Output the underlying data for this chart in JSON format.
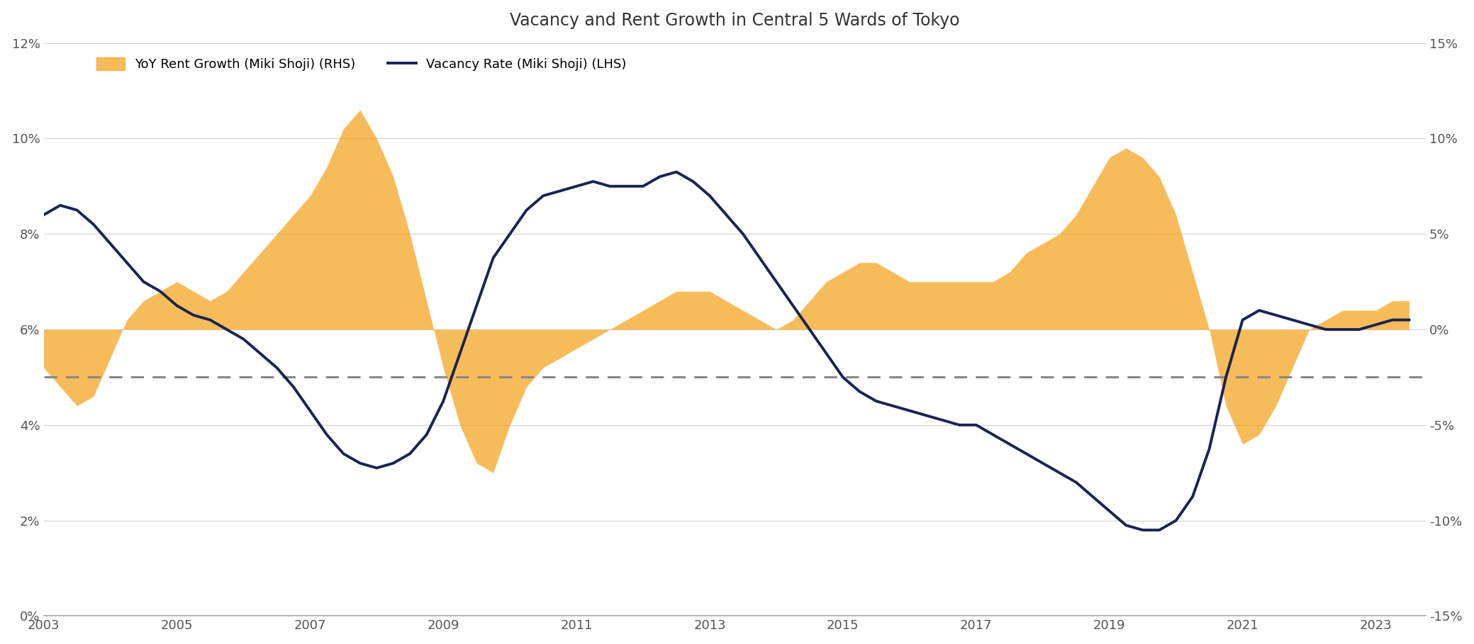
{
  "title": "Vacancy and Rent Growth in Central 5 Wards of Tokyo",
  "legend_rent": "YoY Rent Growth (Miki Shoji) (RHS)",
  "legend_vacancy": "Vacancy Rate (Miki Shoji) (LHS)",
  "lhs_ylim": [
    0,
    12
  ],
  "lhs_yticks": [
    0,
    2,
    4,
    6,
    8,
    10,
    12
  ],
  "lhs_yticklabels": [
    "0%",
    "2%",
    "4%",
    "6%",
    "8%",
    "10%",
    "12%"
  ],
  "rhs_ylim": [
    -15,
    15
  ],
  "rhs_yticks": [
    -15,
    -10,
    -5,
    0,
    5,
    10,
    15
  ],
  "rhs_yticklabels": [
    "-15%",
    "-10%",
    "-5%",
    "0%",
    "5%",
    "10%",
    "15%"
  ],
  "dashed_line_lhs": 5.0,
  "vacancy_color": "#1a2353",
  "rent_color": "#f5a623",
  "rent_alpha": 0.75,
  "background_color": "#ffffff",
  "title_fontsize": 17,
  "tick_fontsize": 13,
  "legend_fontsize": 13,
  "vacancy_linewidth": 2.8,
  "vacancy_data": {
    "years": [
      2003.0,
      2003.25,
      2003.5,
      2003.75,
      2004.0,
      2004.25,
      2004.5,
      2004.75,
      2005.0,
      2005.25,
      2005.5,
      2005.75,
      2006.0,
      2006.25,
      2006.5,
      2006.75,
      2007.0,
      2007.25,
      2007.5,
      2007.75,
      2008.0,
      2008.25,
      2008.5,
      2008.75,
      2009.0,
      2009.25,
      2009.5,
      2009.75,
      2010.0,
      2010.25,
      2010.5,
      2010.75,
      2011.0,
      2011.25,
      2011.5,
      2011.75,
      2012.0,
      2012.25,
      2012.5,
      2012.75,
      2013.0,
      2013.25,
      2013.5,
      2013.75,
      2014.0,
      2014.25,
      2014.5,
      2014.75,
      2015.0,
      2015.25,
      2015.5,
      2015.75,
      2016.0,
      2016.25,
      2016.5,
      2016.75,
      2017.0,
      2017.25,
      2017.5,
      2017.75,
      2018.0,
      2018.25,
      2018.5,
      2018.75,
      2019.0,
      2019.25,
      2019.5,
      2019.75,
      2020.0,
      2020.25,
      2020.5,
      2020.75,
      2021.0,
      2021.25,
      2021.5,
      2021.75,
      2022.0,
      2022.25,
      2022.5,
      2022.75,
      2023.0,
      2023.25,
      2023.5
    ],
    "values": [
      8.4,
      8.6,
      8.5,
      8.2,
      7.8,
      7.4,
      7.0,
      6.8,
      6.5,
      6.3,
      6.2,
      6.0,
      5.8,
      5.5,
      5.2,
      4.8,
      4.3,
      3.8,
      3.4,
      3.2,
      3.1,
      3.2,
      3.4,
      3.8,
      4.5,
      5.5,
      6.5,
      7.5,
      8.0,
      8.5,
      8.8,
      8.9,
      9.0,
      9.1,
      9.0,
      9.0,
      9.0,
      9.2,
      9.3,
      9.1,
      8.8,
      8.4,
      8.0,
      7.5,
      7.0,
      6.5,
      6.0,
      5.5,
      5.0,
      4.7,
      4.5,
      4.4,
      4.3,
      4.2,
      4.1,
      4.0,
      4.0,
      3.8,
      3.6,
      3.4,
      3.2,
      3.0,
      2.8,
      2.5,
      2.2,
      1.9,
      1.8,
      1.8,
      2.0,
      2.5,
      3.5,
      5.0,
      6.2,
      6.4,
      6.3,
      6.2,
      6.1,
      6.0,
      6.0,
      6.0,
      6.1,
      6.2,
      6.2
    ]
  },
  "rent_data": {
    "years": [
      2003.0,
      2003.25,
      2003.5,
      2003.75,
      2004.0,
      2004.25,
      2004.5,
      2004.75,
      2005.0,
      2005.25,
      2005.5,
      2005.75,
      2006.0,
      2006.25,
      2006.5,
      2006.75,
      2007.0,
      2007.25,
      2007.5,
      2007.75,
      2008.0,
      2008.25,
      2008.5,
      2008.75,
      2009.0,
      2009.25,
      2009.5,
      2009.75,
      2010.0,
      2010.25,
      2010.5,
      2010.75,
      2011.0,
      2011.25,
      2011.5,
      2011.75,
      2012.0,
      2012.25,
      2012.5,
      2012.75,
      2013.0,
      2013.25,
      2013.5,
      2013.75,
      2014.0,
      2014.25,
      2014.5,
      2014.75,
      2015.0,
      2015.25,
      2015.5,
      2015.75,
      2016.0,
      2016.25,
      2016.5,
      2016.75,
      2017.0,
      2017.25,
      2017.5,
      2017.75,
      2018.0,
      2018.25,
      2018.5,
      2018.75,
      2019.0,
      2019.25,
      2019.5,
      2019.75,
      2020.0,
      2020.25,
      2020.5,
      2020.75,
      2021.0,
      2021.25,
      2021.5,
      2021.75,
      2022.0,
      2022.25,
      2022.5,
      2022.75,
      2023.0,
      2023.25,
      2023.5
    ],
    "values": [
      -2.0,
      -3.0,
      -4.0,
      -3.5,
      -1.5,
      0.5,
      1.5,
      2.0,
      2.5,
      2.0,
      1.5,
      2.0,
      3.0,
      4.0,
      5.0,
      6.0,
      7.0,
      8.5,
      10.5,
      11.5,
      10.0,
      8.0,
      5.0,
      1.5,
      -2.0,
      -5.0,
      -7.0,
      -7.5,
      -5.0,
      -3.0,
      -2.0,
      -1.5,
      -1.0,
      -0.5,
      0.0,
      0.5,
      1.0,
      1.5,
      2.0,
      2.0,
      2.0,
      1.5,
      1.0,
      0.5,
      0.0,
      0.5,
      1.5,
      2.5,
      3.0,
      3.5,
      3.5,
      3.0,
      2.5,
      2.5,
      2.5,
      2.5,
      2.5,
      2.5,
      3.0,
      4.0,
      4.5,
      5.0,
      6.0,
      7.5,
      9.0,
      9.5,
      9.0,
      8.0,
      6.0,
      3.0,
      0.0,
      -4.0,
      -6.0,
      -5.5,
      -4.0,
      -2.0,
      0.0,
      0.5,
      1.0,
      1.0,
      1.0,
      1.5,
      1.5
    ]
  },
  "xticks": [
    2003,
    2005,
    2007,
    2009,
    2011,
    2013,
    2015,
    2017,
    2019,
    2021,
    2023
  ],
  "xticklabels": [
    "2003",
    "2005",
    "2007",
    "2009",
    "2011",
    "2013",
    "2015",
    "2017",
    "2019",
    "2021",
    "2023"
  ],
  "xlim": [
    2003.0,
    2023.75
  ]
}
